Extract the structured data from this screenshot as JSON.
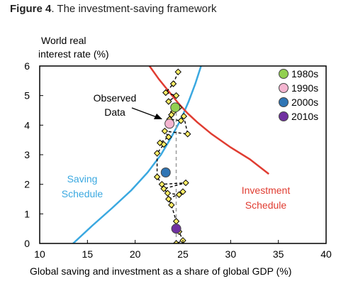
{
  "caption": {
    "label": "Figure 4",
    "text": ". The investment-saving framework"
  },
  "chart_data": {
    "type": "scatter",
    "xlabel": "Global saving and investment as a share of global GDP (%)",
    "ylabel_line1": "World real",
    "ylabel_line2": "interest rate (%)",
    "xlim": [
      10,
      40
    ],
    "ylim": [
      0,
      6
    ],
    "xticks": [
      "10",
      "15",
      "20",
      "25",
      "30",
      "35",
      "40"
    ],
    "yticks": [
      "0",
      "1",
      "2",
      "3",
      "4",
      "5",
      "6"
    ],
    "grid": false,
    "legend_position": "top-right",
    "curves": {
      "saving": {
        "label_line1": "Saving",
        "label_line2": "Schedule",
        "color": "#3aa8e0",
        "points": [
          [
            13.5,
            0
          ],
          [
            15.5,
            0.6
          ],
          [
            17.6,
            1.2
          ],
          [
            19.6,
            1.8
          ],
          [
            21.3,
            2.4
          ],
          [
            22.7,
            3.0
          ],
          [
            23.8,
            3.6
          ],
          [
            24.8,
            4.2
          ],
          [
            25.6,
            4.8
          ],
          [
            26.3,
            5.4
          ],
          [
            26.9,
            6.0
          ]
        ]
      },
      "investment": {
        "label_line1": "Investment",
        "label_line2": "Schedule",
        "color": "#e03c31",
        "points": [
          [
            21.5,
            6.0
          ],
          [
            22.5,
            5.55
          ],
          [
            23.5,
            5.15
          ],
          [
            24.5,
            4.75
          ],
          [
            25.5,
            4.4
          ],
          [
            26.5,
            4.1
          ],
          [
            28.0,
            3.7
          ],
          [
            30.0,
            3.25
          ],
          [
            32.0,
            2.85
          ],
          [
            34.0,
            2.35
          ]
        ]
      }
    },
    "observed": {
      "label_line1": "Observed",
      "label_line2": "Data",
      "marker_color": "#ffee66",
      "points": [
        [
          24.5,
          5.8
        ],
        [
          24.0,
          5.4
        ],
        [
          23.2,
          5.1
        ],
        [
          24.3,
          5.0
        ],
        [
          23.5,
          4.8
        ],
        [
          24.6,
          4.6
        ],
        [
          24.0,
          4.45
        ],
        [
          23.8,
          4.35
        ],
        [
          23.6,
          4.2
        ],
        [
          24.8,
          4.15
        ],
        [
          25.1,
          4.3
        ],
        [
          25.5,
          3.7
        ],
        [
          23.1,
          3.8
        ],
        [
          23.5,
          3.6
        ],
        [
          22.6,
          3.4
        ],
        [
          23.0,
          3.35
        ],
        [
          22.3,
          3.05
        ],
        [
          22.3,
          2.25
        ],
        [
          22.8,
          2.0
        ],
        [
          25.3,
          2.05
        ],
        [
          23.0,
          1.85
        ],
        [
          23.4,
          1.7
        ],
        [
          24.6,
          1.65
        ],
        [
          25.0,
          1.75
        ],
        [
          23.5,
          1.5
        ],
        [
          23.8,
          1.3
        ],
        [
          24.3,
          0.75
        ],
        [
          24.6,
          0.4
        ],
        [
          25.0,
          0.1
        ],
        [
          24.3,
          0.0
        ]
      ]
    },
    "decades": [
      {
        "name": "1980s",
        "x": 24.2,
        "y": 4.6,
        "color": "#92d050"
      },
      {
        "name": "1990s",
        "x": 23.6,
        "y": 4.05,
        "color": "#f4b5d0"
      },
      {
        "name": "2000s",
        "x": 23.2,
        "y": 2.4,
        "color": "#2f75b5"
      },
      {
        "name": "2010s",
        "x": 24.3,
        "y": 0.5,
        "color": "#7030a0"
      }
    ],
    "average": {
      "x": 24.3,
      "y_from": 0,
      "y_to": 4.6,
      "color": "#a0a0a0"
    }
  }
}
